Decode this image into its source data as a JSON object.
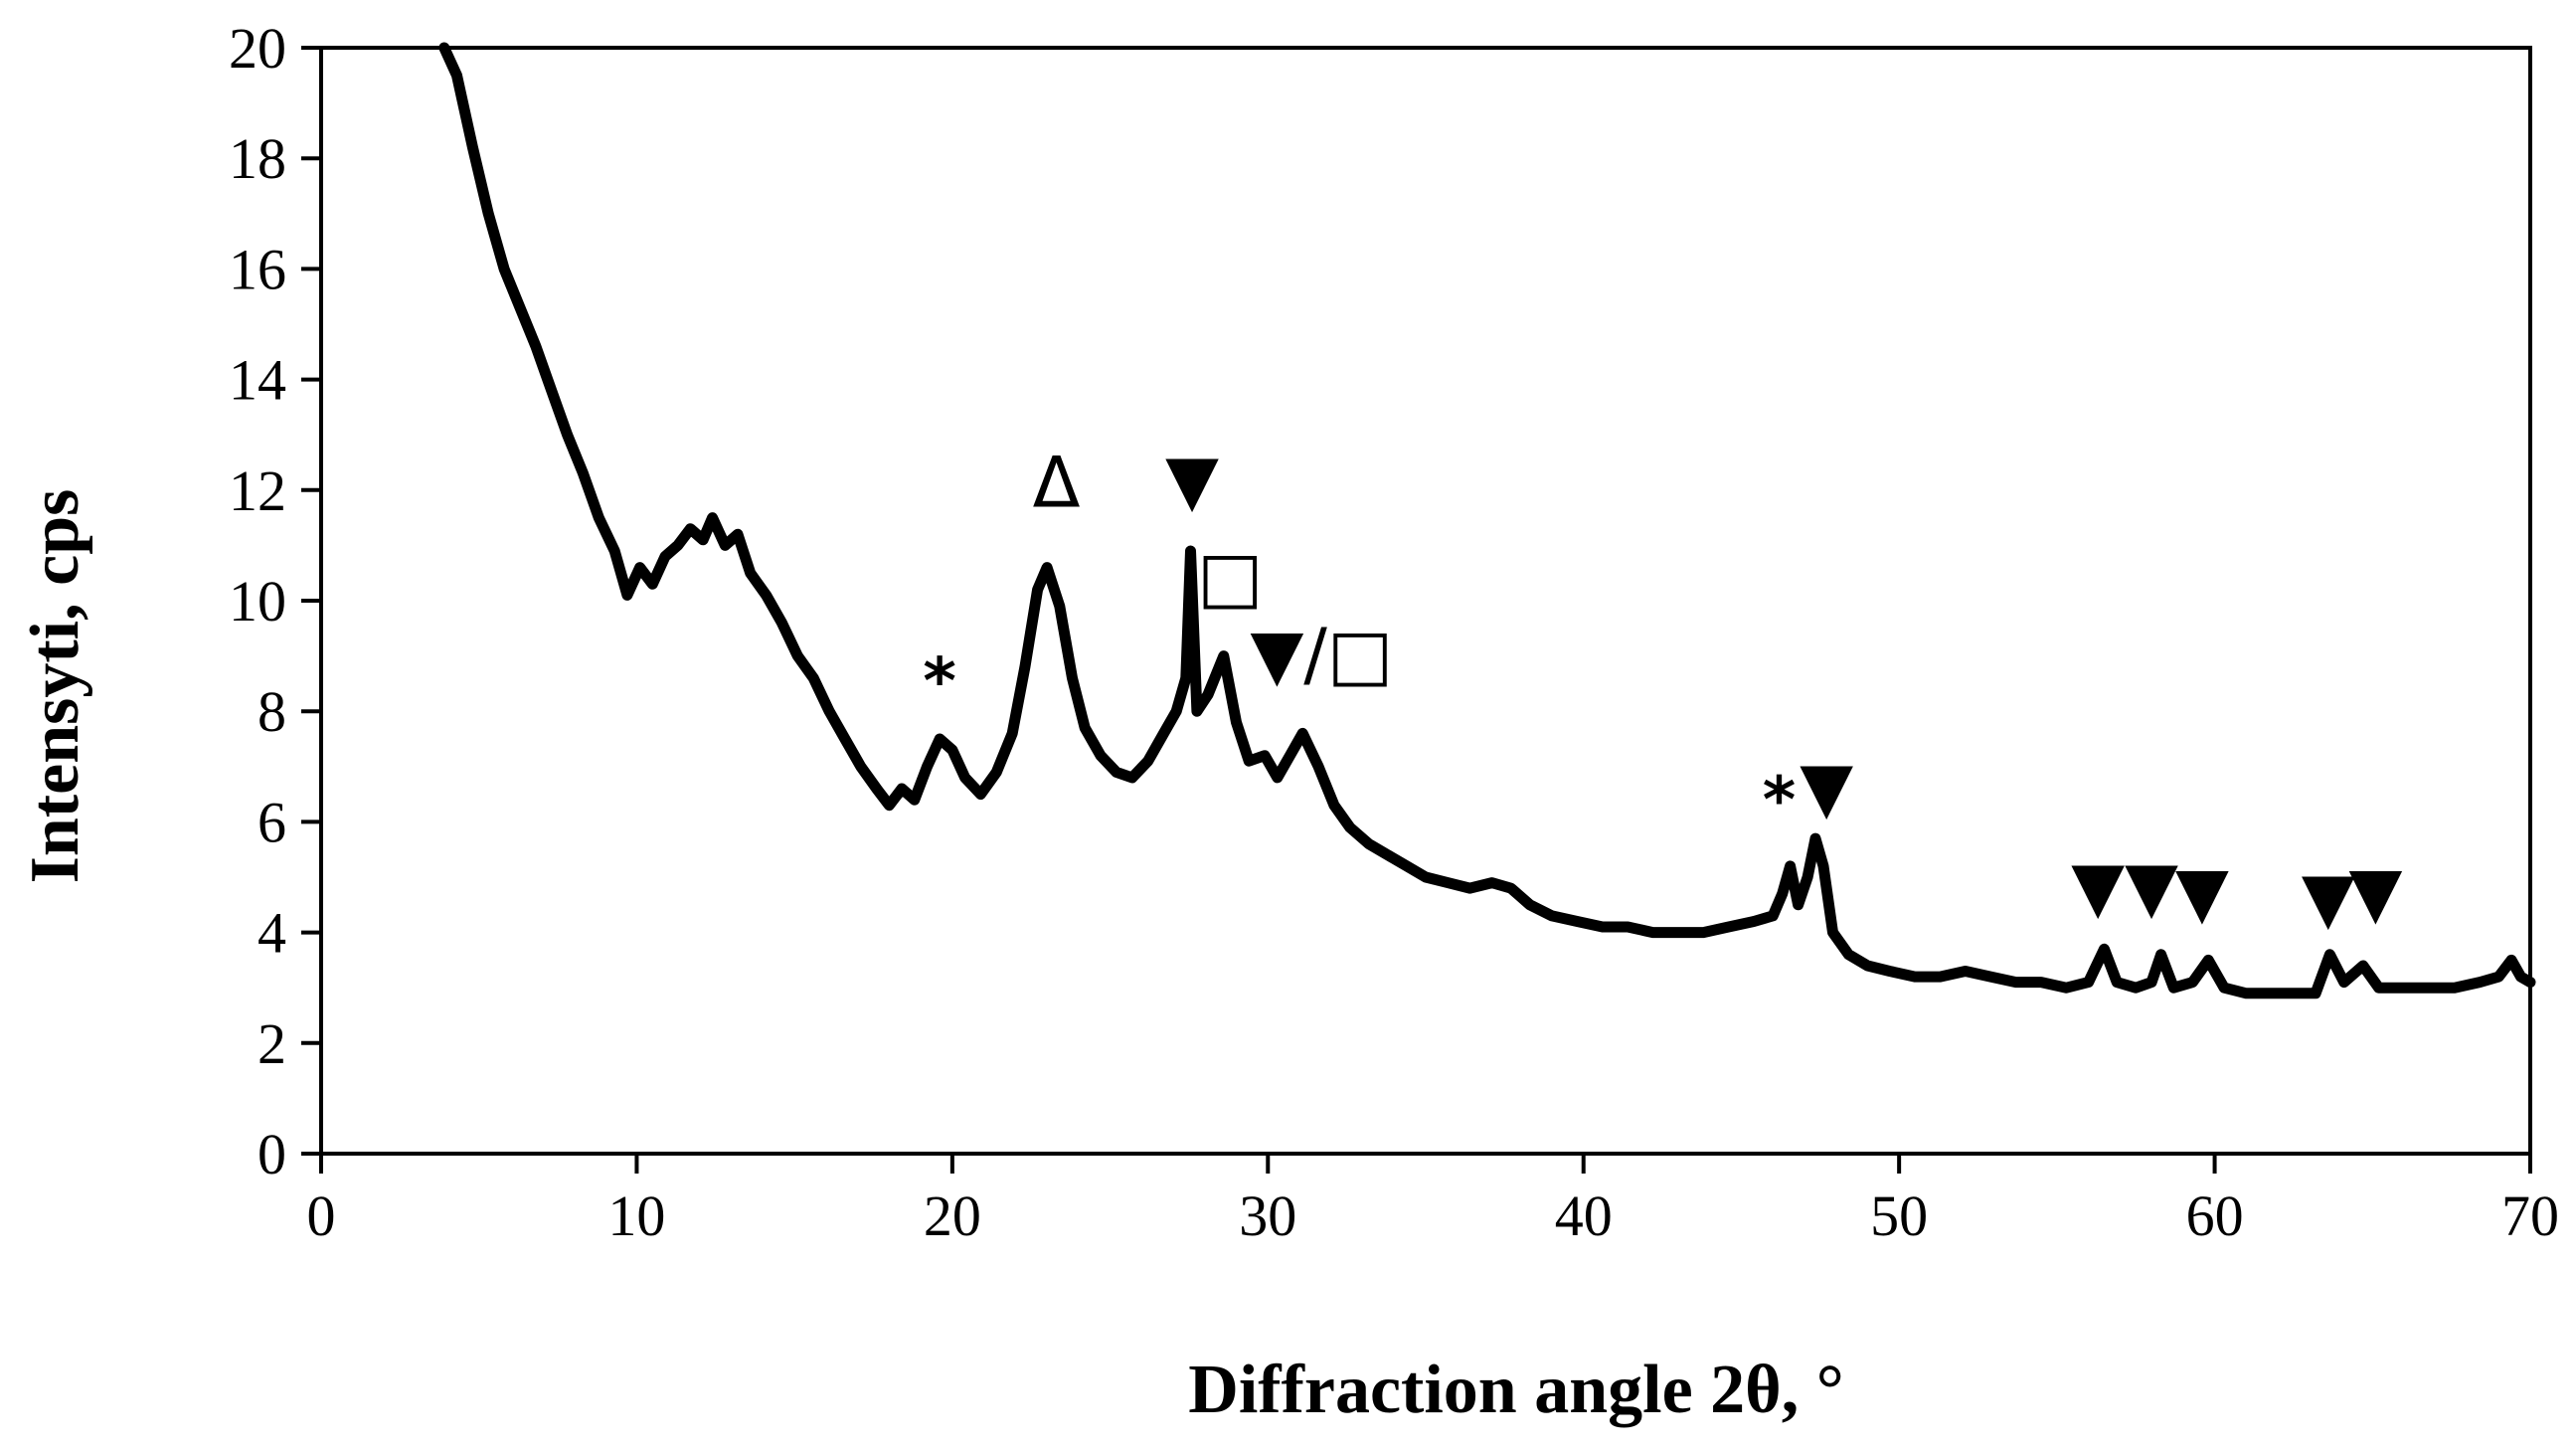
{
  "chart_data": {
    "type": "line",
    "title": "",
    "xlabel": "Diffraction angle 2θ, °",
    "ylabel": "Intensyti, cps",
    "xlim": [
      0,
      70
    ],
    "ylim": [
      0,
      20
    ],
    "x_ticks": [
      "0",
      "10",
      "20",
      "30",
      "40",
      "50",
      "60",
      "70"
    ],
    "y_ticks": [
      "0",
      "2",
      "4",
      "6",
      "8",
      "10",
      "12",
      "14",
      "16",
      "18",
      "20"
    ],
    "grid": false,
    "legend": "none",
    "series_color": "#000000",
    "series": [
      {
        "points": [
          [
            3.9,
            20.5
          ],
          [
            4.3,
            19.5
          ],
          [
            4.8,
            18.2
          ],
          [
            5.3,
            17.0
          ],
          [
            5.8,
            16.0
          ],
          [
            6.3,
            15.3
          ],
          [
            6.8,
            14.6
          ],
          [
            7.3,
            13.8
          ],
          [
            7.8,
            13.0
          ],
          [
            8.3,
            12.3
          ],
          [
            8.8,
            11.5
          ],
          [
            9.3,
            10.9
          ],
          [
            9.7,
            10.1
          ],
          [
            10.1,
            10.6
          ],
          [
            10.5,
            10.3
          ],
          [
            10.9,
            10.8
          ],
          [
            11.3,
            11.0
          ],
          [
            11.7,
            11.3
          ],
          [
            12.1,
            11.1
          ],
          [
            12.4,
            11.5
          ],
          [
            12.8,
            11.0
          ],
          [
            13.2,
            11.2
          ],
          [
            13.6,
            10.5
          ],
          [
            14.1,
            10.1
          ],
          [
            14.6,
            9.6
          ],
          [
            15.1,
            9.0
          ],
          [
            15.6,
            8.6
          ],
          [
            16.1,
            8.0
          ],
          [
            16.6,
            7.5
          ],
          [
            17.1,
            7.0
          ],
          [
            17.6,
            6.6
          ],
          [
            18.0,
            6.3
          ],
          [
            18.4,
            6.6
          ],
          [
            18.8,
            6.4
          ],
          [
            19.2,
            7.0
          ],
          [
            19.6,
            7.5
          ],
          [
            20.0,
            7.3
          ],
          [
            20.4,
            6.8
          ],
          [
            20.9,
            6.5
          ],
          [
            21.4,
            6.9
          ],
          [
            21.9,
            7.6
          ],
          [
            22.3,
            8.8
          ],
          [
            22.7,
            10.2
          ],
          [
            23.0,
            10.6
          ],
          [
            23.4,
            9.9
          ],
          [
            23.8,
            8.6
          ],
          [
            24.2,
            7.7
          ],
          [
            24.7,
            7.2
          ],
          [
            25.2,
            6.9
          ],
          [
            25.7,
            6.8
          ],
          [
            26.2,
            7.1
          ],
          [
            26.7,
            7.6
          ],
          [
            27.1,
            8.0
          ],
          [
            27.4,
            8.6
          ],
          [
            27.55,
            10.9
          ],
          [
            27.75,
            8.0
          ],
          [
            28.1,
            8.3
          ],
          [
            28.6,
            9.0
          ],
          [
            29.0,
            7.8
          ],
          [
            29.4,
            7.1
          ],
          [
            29.9,
            7.2
          ],
          [
            30.3,
            6.8
          ],
          [
            30.7,
            7.2
          ],
          [
            31.1,
            7.6
          ],
          [
            31.6,
            7.0
          ],
          [
            32.1,
            6.3
          ],
          [
            32.6,
            5.9
          ],
          [
            33.2,
            5.6
          ],
          [
            33.8,
            5.4
          ],
          [
            34.4,
            5.2
          ],
          [
            35.0,
            5.0
          ],
          [
            35.7,
            4.9
          ],
          [
            36.4,
            4.8
          ],
          [
            37.1,
            4.9
          ],
          [
            37.7,
            4.8
          ],
          [
            38.3,
            4.5
          ],
          [
            39.0,
            4.3
          ],
          [
            39.8,
            4.2
          ],
          [
            40.6,
            4.1
          ],
          [
            41.4,
            4.1
          ],
          [
            42.2,
            4.0
          ],
          [
            43.0,
            4.0
          ],
          [
            43.8,
            4.0
          ],
          [
            44.6,
            4.1
          ],
          [
            45.4,
            4.2
          ],
          [
            46.0,
            4.3
          ],
          [
            46.3,
            4.7
          ],
          [
            46.55,
            5.2
          ],
          [
            46.8,
            4.5
          ],
          [
            47.1,
            5.0
          ],
          [
            47.35,
            5.7
          ],
          [
            47.6,
            5.2
          ],
          [
            47.9,
            4.0
          ],
          [
            48.4,
            3.6
          ],
          [
            49.0,
            3.4
          ],
          [
            49.7,
            3.3
          ],
          [
            50.5,
            3.2
          ],
          [
            51.3,
            3.2
          ],
          [
            52.1,
            3.3
          ],
          [
            52.9,
            3.2
          ],
          [
            53.7,
            3.1
          ],
          [
            54.5,
            3.1
          ],
          [
            55.3,
            3.0
          ],
          [
            56.0,
            3.1
          ],
          [
            56.5,
            3.7
          ],
          [
            56.9,
            3.1
          ],
          [
            57.5,
            3.0
          ],
          [
            58.0,
            3.1
          ],
          [
            58.3,
            3.6
          ],
          [
            58.7,
            3.0
          ],
          [
            59.3,
            3.1
          ],
          [
            59.8,
            3.5
          ],
          [
            60.3,
            3.0
          ],
          [
            61.0,
            2.9
          ],
          [
            61.8,
            2.9
          ],
          [
            62.5,
            2.9
          ],
          [
            63.2,
            2.9
          ],
          [
            63.65,
            3.6
          ],
          [
            64.1,
            3.1
          ],
          [
            64.7,
            3.4
          ],
          [
            65.2,
            3.0
          ],
          [
            66.0,
            3.0
          ],
          [
            66.8,
            3.0
          ],
          [
            67.6,
            3.0
          ],
          [
            68.4,
            3.1
          ],
          [
            69.0,
            3.2
          ],
          [
            69.4,
            3.5
          ],
          [
            69.7,
            3.2
          ],
          [
            70.0,
            3.1
          ]
        ]
      }
    ],
    "annotations": [
      {
        "text": "*",
        "x": 19.6,
        "y": 8.15,
        "size": "small"
      },
      {
        "text": "Δ",
        "x": 23.3,
        "y": 11.7,
        "size": "large"
      },
      {
        "text": "▼",
        "x": 27.6,
        "y": 11.75,
        "size": "large"
      },
      {
        "text": "□",
        "x": 28.8,
        "y": 10.0,
        "size": "large"
      },
      {
        "text": "▼/□",
        "x": 31.7,
        "y": 8.6,
        "size": "large"
      },
      {
        "text": "*",
        "x": 46.2,
        "y": 6.0,
        "size": "small"
      },
      {
        "text": "▼",
        "x": 47.7,
        "y": 6.2,
        "size": "large"
      },
      {
        "text": "▼",
        "x": 56.3,
        "y": 4.4,
        "size": "large"
      },
      {
        "text": "▼",
        "x": 58.0,
        "y": 4.4,
        "size": "large"
      },
      {
        "text": "▼",
        "x": 59.6,
        "y": 4.3,
        "size": "large"
      },
      {
        "text": "▼",
        "x": 63.6,
        "y": 4.2,
        "size": "large"
      },
      {
        "text": "▼",
        "x": 65.1,
        "y": 4.3,
        "size": "large"
      }
    ]
  }
}
